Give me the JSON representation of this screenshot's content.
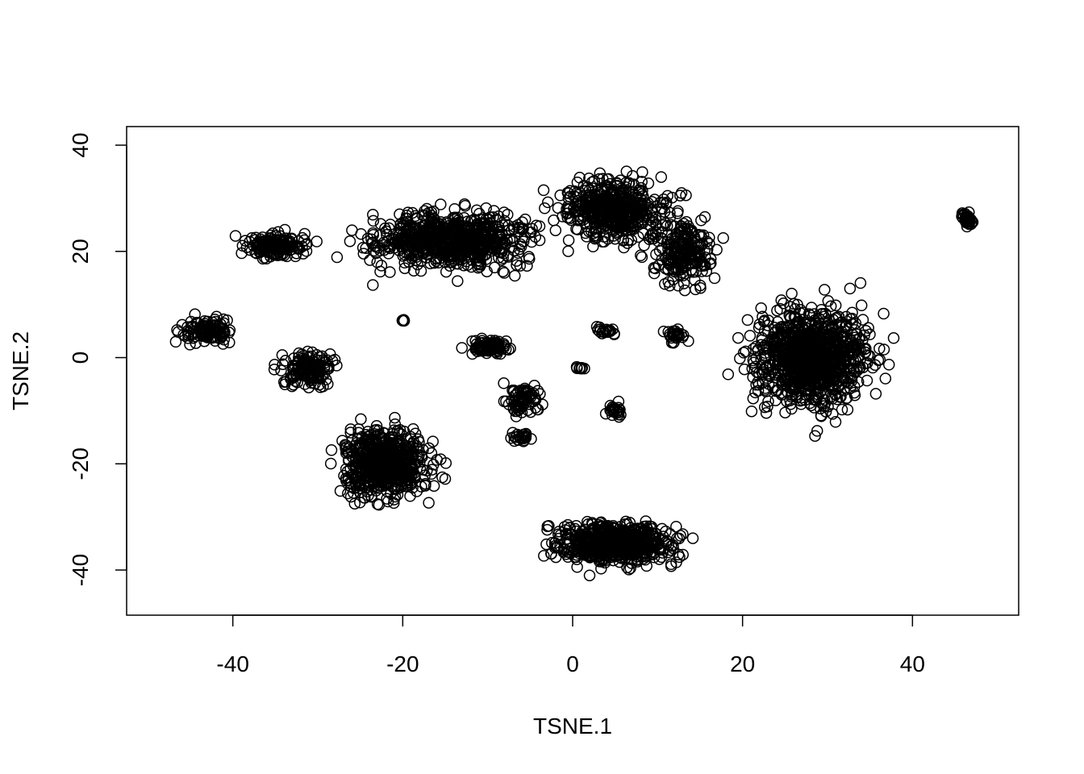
{
  "chart_data": {
    "type": "scatter",
    "title": "",
    "xlabel": "TSNE.1",
    "ylabel": "TSNE.2",
    "xlim": [
      -52.5,
      52.5
    ],
    "ylim": [
      -48.5,
      43.5
    ],
    "x_ticks": [
      -40,
      -20,
      0,
      20,
      40
    ],
    "y_ticks": [
      -40,
      -20,
      0,
      20,
      40
    ],
    "x_tick_labels": [
      "-40",
      "-20",
      "0",
      "20",
      "40"
    ],
    "y_tick_labels": [
      "-40",
      "-20",
      "0",
      "20",
      "40"
    ],
    "marker": "open-circle",
    "marker_color": "#000000",
    "grid": false,
    "clusters": [
      {
        "center": [
          -14,
          22
        ],
        "spread": [
          13,
          7
        ],
        "n": 700
      },
      {
        "center": [
          -35,
          21
        ],
        "spread": [
          5,
          3
        ],
        "n": 160
      },
      {
        "center": [
          -43,
          5
        ],
        "spread": [
          4,
          3
        ],
        "n": 110
      },
      {
        "center": [
          -31,
          -2
        ],
        "spread": [
          4,
          4
        ],
        "n": 150
      },
      {
        "center": [
          -22,
          -20
        ],
        "spread": [
          7,
          9
        ],
        "n": 600
      },
      {
        "center": [
          5,
          28
        ],
        "spread": [
          8,
          8
        ],
        "n": 500
      },
      {
        "center": [
          13,
          20
        ],
        "spread": [
          5,
          8
        ],
        "n": 200
      },
      {
        "center": [
          28,
          0
        ],
        "spread": [
          9,
          12
        ],
        "n": 1000
      },
      {
        "center": [
          5,
          -35
        ],
        "spread": [
          9,
          5
        ],
        "n": 650
      },
      {
        "center": [
          -10,
          2
        ],
        "spread": [
          3,
          2
        ],
        "n": 90
      },
      {
        "center": [
          -6,
          -8
        ],
        "spread": [
          3,
          3
        ],
        "n": 70
      },
      {
        "center": [
          -6,
          -15
        ],
        "spread": [
          2,
          1
        ],
        "n": 25
      },
      {
        "center": [
          4,
          5
        ],
        "spread": [
          1.5,
          1
        ],
        "n": 20
      },
      {
        "center": [
          5,
          -10
        ],
        "spread": [
          1.2,
          2
        ],
        "n": 25
      },
      {
        "center": [
          12,
          4
        ],
        "spread": [
          1.5,
          2
        ],
        "n": 25
      },
      {
        "center": [
          -20,
          7
        ],
        "spread": [
          0.5,
          0.3
        ],
        "n": 6
      },
      {
        "center": [
          1,
          -2
        ],
        "spread": [
          1,
          0.3
        ],
        "n": 8
      },
      {
        "center": [
          46.5,
          26
        ],
        "spread": [
          0.9,
          1.5
        ],
        "n": 35
      }
    ]
  }
}
